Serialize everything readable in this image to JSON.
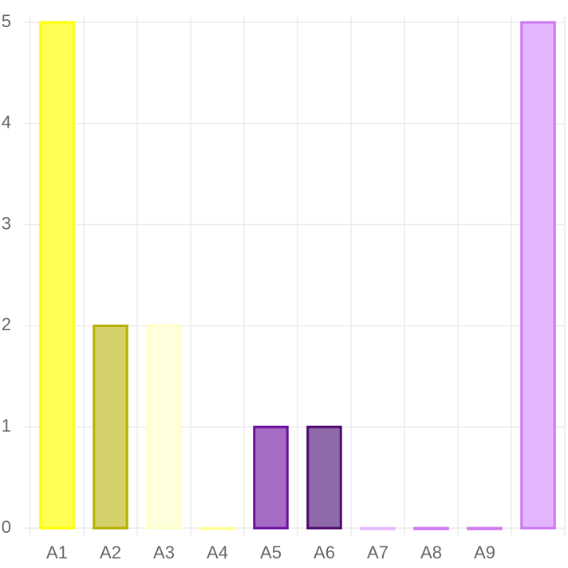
{
  "chart_data": {
    "type": "bar",
    "categories": [
      "A1",
      "A2",
      "A3",
      "A4",
      "A5",
      "A6",
      "A7",
      "A8",
      "A9",
      null
    ],
    "values": [
      5,
      2,
      2,
      0,
      1,
      1,
      0,
      0,
      0,
      5
    ],
    "colors": [
      "#ffff55",
      "#d4d06a",
      "#ffffdd",
      "#ffffa0",
      "#a66bc4",
      "#8f6aa8",
      "#eec4ff",
      "#d98af5",
      "#d98af5",
      "#e3b5ff"
    ],
    "border_colors": [
      "#ffff00",
      "#b5b000",
      "#ffffcc",
      "#ffff99",
      "#6a0fa0",
      "#4d0a6e",
      "#e6b8ff",
      "#cc77ee",
      "#cc77ee",
      "#cc77f5"
    ],
    "ylim": [
      0,
      5
    ],
    "yticks": [
      0,
      1,
      2,
      3,
      4,
      5
    ],
    "grid": true
  }
}
